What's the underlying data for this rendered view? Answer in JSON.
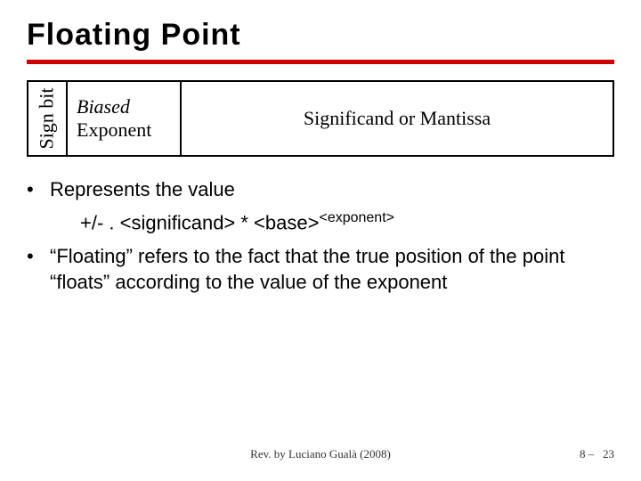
{
  "title": "Floating Point",
  "diagram": {
    "sign_label": "Sign bit",
    "exponent_top": "Biased",
    "exponent_bottom": "Exponent",
    "mantissa_label": "Significand or Mantissa"
  },
  "bullet1": "Represents the value",
  "formula_prefix": "+/- . <significand> * <base>",
  "formula_sup": "<exponent>",
  "bullet2": "“Floating” refers to the fact that the true position of the point “floats” according to the value of the exponent",
  "footer_center": "Rev. by Luciano Gualà (2008)",
  "footer_page_a": "8 –",
  "footer_page_b": "23",
  "colors": {
    "rule": "#cc0000",
    "text": "#000000",
    "bg": "#ffffff"
  }
}
